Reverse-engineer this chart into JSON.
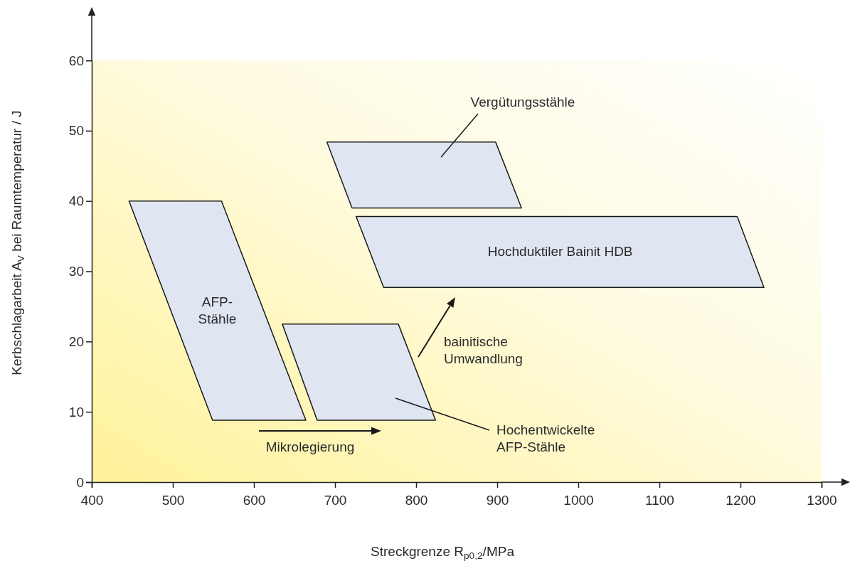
{
  "chart_data": {
    "type": "area",
    "xlabel": "Streckgrenze R$_{p0,2}$/MPa",
    "ylabel": "Kerbschlagarbeit A$_{V}$ bei Raumtemperatur / J",
    "xlim": [
      400,
      1300
    ],
    "xticks": [
      400,
      500,
      600,
      700,
      800,
      900,
      1000,
      1100,
      1200,
      1300
    ],
    "ylim": [
      0,
      60
    ],
    "yticks": [
      0,
      10,
      20,
      30,
      40,
      50,
      60
    ],
    "grid": false,
    "series": [
      {
        "name": "AFP-\nStähle",
        "color": "#dfe6f2",
        "x": [
          446,
          560,
          664,
          549,
          446
        ],
        "values": [
          40,
          40,
          8.8,
          8.8,
          40
        ]
      },
      {
        "color": "#dfe6f2",
        "x": [
          635,
          778,
          824,
          678,
          635
        ],
        "values": [
          22.5,
          22.5,
          8.8,
          8.8,
          22.5
        ]
      },
      {
        "color": "#dfe6f2",
        "x": [
          690,
          898,
          930,
          721,
          690
        ],
        "values": [
          48.4,
          48.4,
          39,
          39,
          48.4
        ]
      },
      {
        "name": "Hochduktiler Bainit HDB",
        "color": "#dfe6f2",
        "x": [
          726,
          1196,
          1229,
          760,
          726
        ],
        "values": [
          37.8,
          37.8,
          27.7,
          27.7,
          37.8
        ]
      }
    ],
    "annotations": [
      "Vergütungsstähle",
      "Hochentwickelte\nAFP-Stähle",
      "Mikrolegierung",
      "bainitische\nUmwandlung"
    ]
  }
}
